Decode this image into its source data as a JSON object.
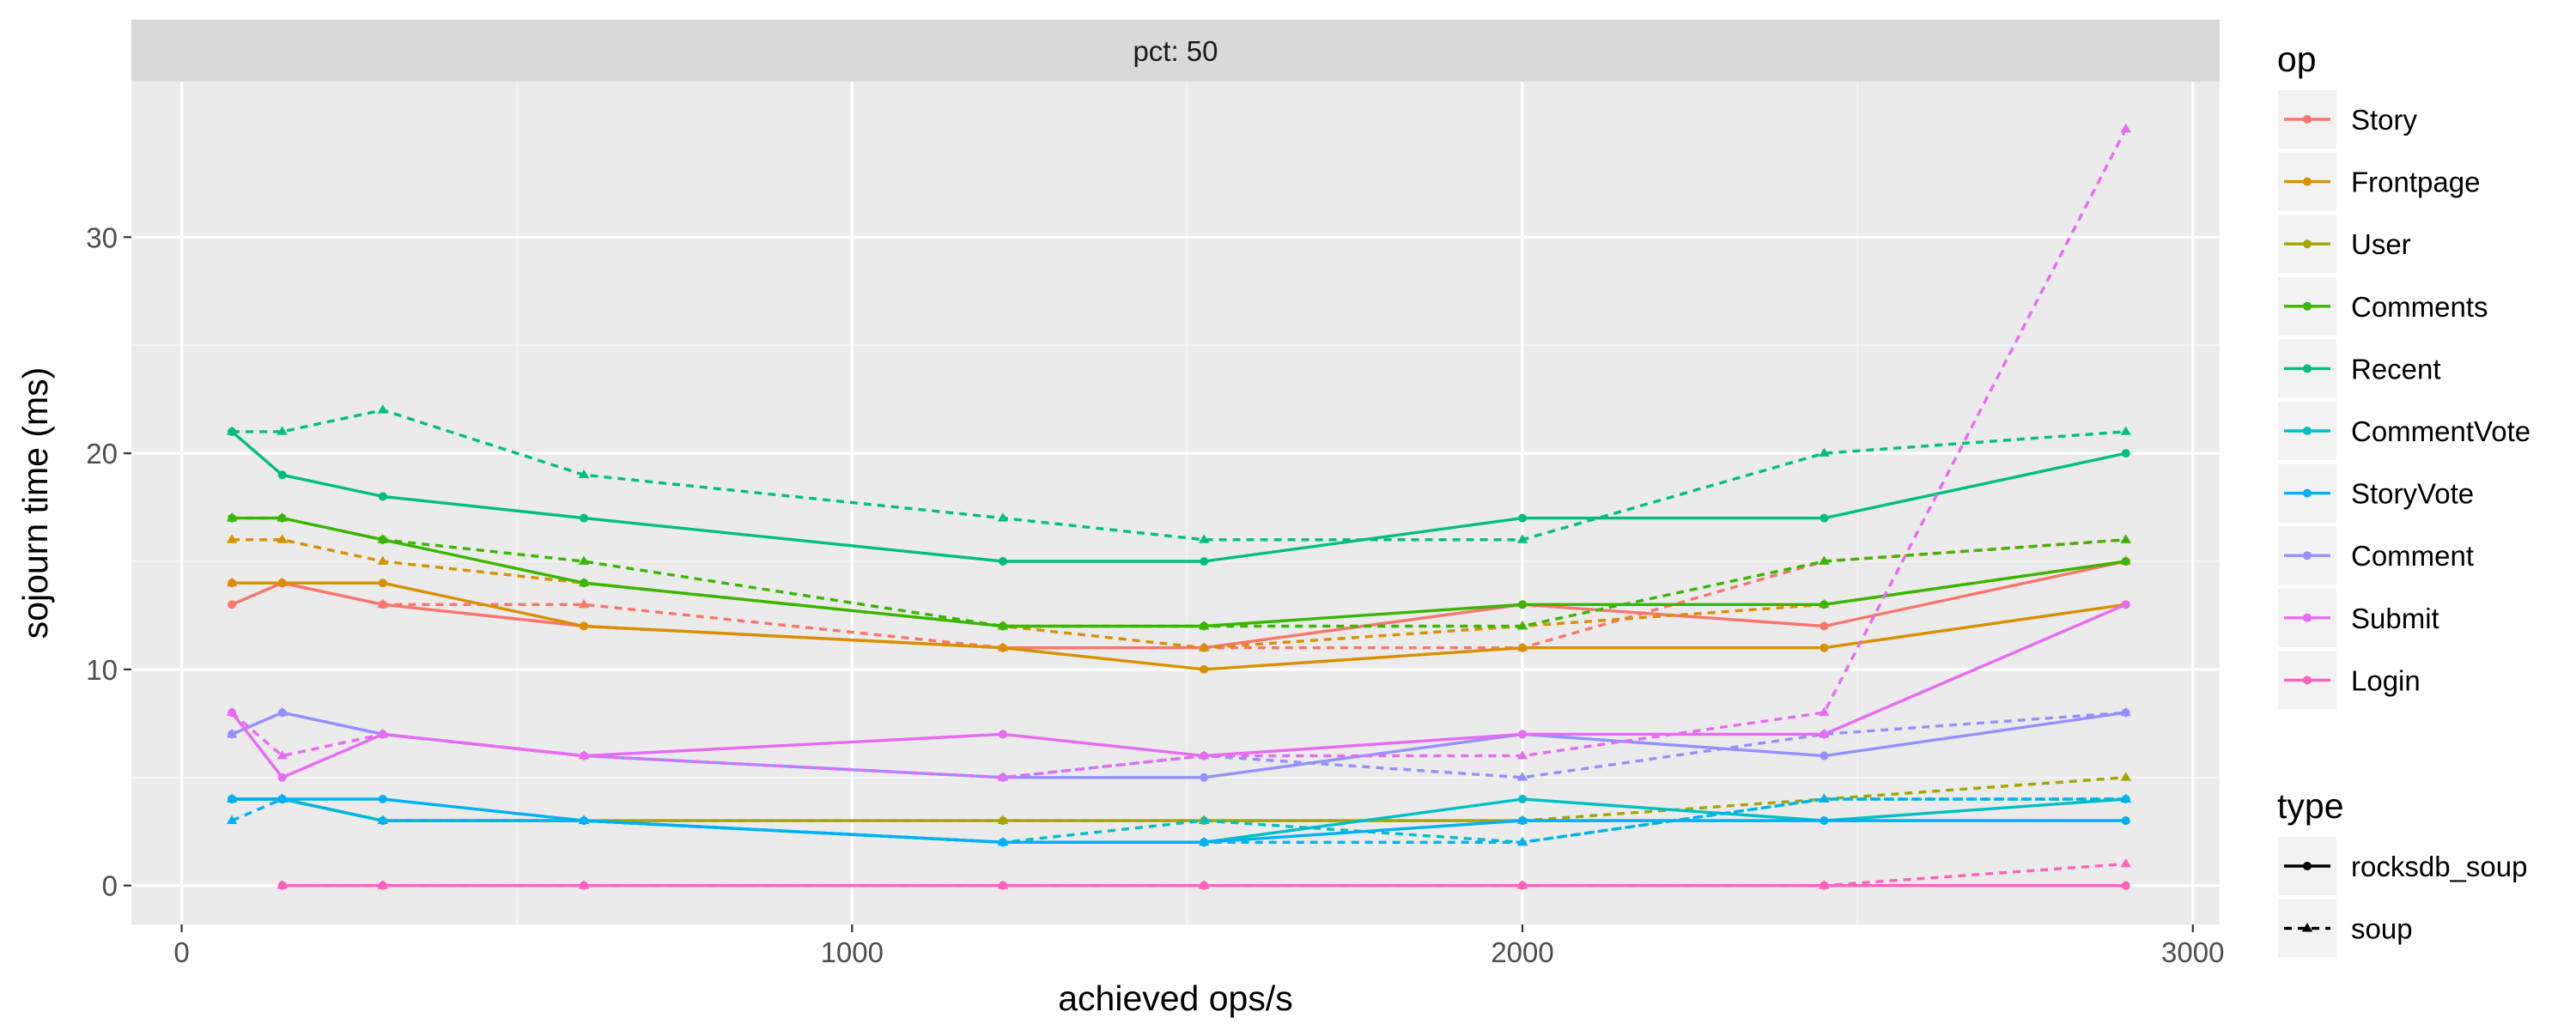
{
  "chart_data": {
    "type": "line",
    "facet_label": "pct: 50",
    "xlabel": "achieved ops/s",
    "ylabel": "sojourn time (ms)",
    "xlim": [
      -75,
      3040
    ],
    "ylim": [
      -1.8,
      37.2
    ],
    "x_ticks": [
      0,
      1000,
      2000,
      3000
    ],
    "x_tick_labels": [
      "0",
      "1000",
      "2000",
      "3000"
    ],
    "y_ticks": [
      0,
      10,
      20,
      30
    ],
    "y_tick_labels": [
      "0",
      "10",
      "20",
      "30"
    ],
    "grid": true,
    "x": [
      75,
      150,
      300,
      600,
      1225,
      1525,
      2000,
      2450,
      2900
    ],
    "legend_op": {
      "title": "op",
      "entries": [
        {
          "name": "Story",
          "color": "#F8766D"
        },
        {
          "name": "Frontpage",
          "color": "#D89000"
        },
        {
          "name": "User",
          "color": "#A3A500"
        },
        {
          "name": "Comments",
          "color": "#39B600"
        },
        {
          "name": "Recent",
          "color": "#00BF7D"
        },
        {
          "name": "CommentVote",
          "color": "#00BFC4"
        },
        {
          "name": "StoryVote",
          "color": "#00B0F6"
        },
        {
          "name": "Comment",
          "color": "#9590FF"
        },
        {
          "name": "Submit",
          "color": "#E76BF3"
        },
        {
          "name": "Login",
          "color": "#FF62BC"
        }
      ]
    },
    "legend_type": {
      "title": "type",
      "entries": [
        {
          "name": "rocksdb_soup",
          "dash": "solid",
          "shape": "circle"
        },
        {
          "name": "soup",
          "dash": "dashed",
          "shape": "triangle"
        }
      ]
    },
    "series": [
      {
        "op": "Story",
        "type": "rocksdb_soup",
        "values": [
          13,
          14,
          13,
          12,
          11,
          11,
          13,
          12,
          15
        ]
      },
      {
        "op": "Story",
        "type": "soup",
        "values": [
          14,
          14,
          13,
          13,
          11,
          11,
          11,
          15,
          16
        ]
      },
      {
        "op": "Frontpage",
        "type": "rocksdb_soup",
        "values": [
          14,
          14,
          14,
          12,
          11,
          10,
          11,
          11,
          13
        ]
      },
      {
        "op": "Frontpage",
        "type": "soup",
        "values": [
          16,
          16,
          15,
          14,
          12,
          11,
          12,
          13,
          15
        ]
      },
      {
        "op": "User",
        "type": "rocksdb_soup",
        "values": [
          4,
          4,
          3,
          3,
          3,
          3,
          3,
          3,
          3
        ]
      },
      {
        "op": "User",
        "type": "soup",
        "values": [
          4,
          4,
          3,
          3,
          3,
          3,
          3,
          4,
          5
        ]
      },
      {
        "op": "Comments",
        "type": "rocksdb_soup",
        "values": [
          17,
          17,
          16,
          14,
          12,
          12,
          13,
          13,
          15
        ]
      },
      {
        "op": "Comments",
        "type": "soup",
        "values": [
          17,
          17,
          16,
          15,
          12,
          12,
          12,
          15,
          16
        ]
      },
      {
        "op": "Recent",
        "type": "rocksdb_soup",
        "values": [
          21,
          19,
          18,
          17,
          15,
          15,
          17,
          17,
          20
        ]
      },
      {
        "op": "Recent",
        "type": "soup",
        "values": [
          21,
          21,
          22,
          19,
          17,
          16,
          16,
          20,
          21
        ]
      },
      {
        "op": "CommentVote",
        "type": "rocksdb_soup",
        "values": [
          4,
          4,
          3,
          3,
          2,
          2,
          4,
          3,
          4
        ]
      },
      {
        "op": "CommentVote",
        "type": "soup",
        "values": [
          4,
          4,
          3,
          3,
          2,
          3,
          2,
          4,
          4
        ]
      },
      {
        "op": "StoryVote",
        "type": "rocksdb_soup",
        "values": [
          4,
          4,
          4,
          3,
          2,
          2,
          3,
          3,
          3
        ]
      },
      {
        "op": "StoryVote",
        "type": "soup",
        "values": [
          3,
          4,
          3,
          3,
          2,
          2,
          2,
          4,
          4
        ]
      },
      {
        "op": "Comment",
        "type": "rocksdb_soup",
        "values": [
          7,
          8,
          7,
          6,
          5,
          5,
          7,
          6,
          8
        ]
      },
      {
        "op": "Comment",
        "type": "soup",
        "values": [
          7,
          8,
          7,
          6,
          5,
          6,
          5,
          7,
          8
        ]
      },
      {
        "op": "Submit",
        "type": "rocksdb_soup",
        "values": [
          8,
          5,
          7,
          6,
          7,
          6,
          7,
          7,
          13
        ]
      },
      {
        "op": "Submit",
        "type": "soup",
        "values": [
          8,
          6,
          7,
          6,
          5,
          6,
          6,
          8,
          35
        ]
      },
      {
        "op": "Login",
        "type": "rocksdb_soup",
        "values": [
          null,
          0,
          0,
          0,
          0,
          0,
          0,
          0,
          0
        ]
      },
      {
        "op": "Login",
        "type": "soup",
        "values": [
          null,
          0,
          0,
          0,
          0,
          0,
          0,
          0,
          1
        ]
      }
    ]
  }
}
